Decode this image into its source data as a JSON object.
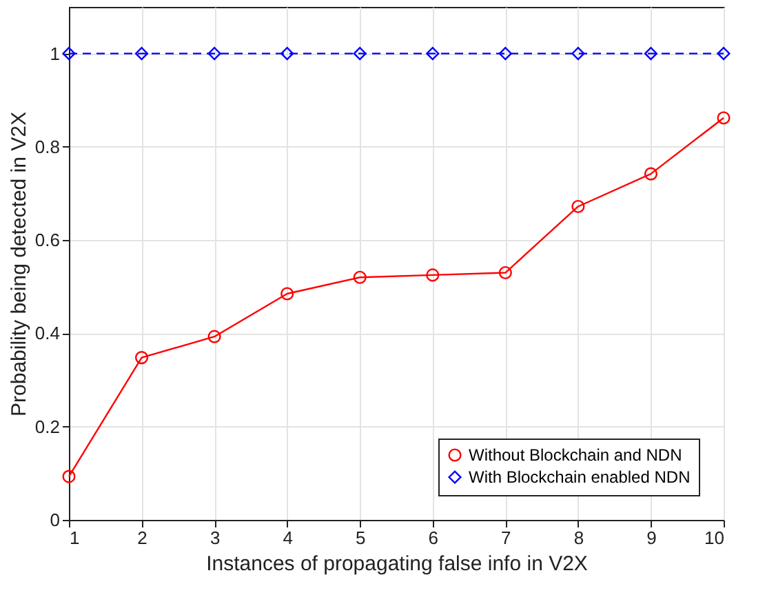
{
  "chart_data": {
    "type": "line",
    "xlabel": "Instances of propagating false info in V2X",
    "ylabel": "Probability being detected in V2X",
    "x": [
      1,
      2,
      3,
      4,
      5,
      6,
      7,
      8,
      9,
      10
    ],
    "series": [
      {
        "name": "Without Blockchain and NDN",
        "color": "#ff0000",
        "marker": "circle",
        "line_style": "solid",
        "values": [
          0.093,
          0.348,
          0.393,
          0.485,
          0.52,
          0.525,
          0.53,
          0.672,
          0.742,
          0.862
        ]
      },
      {
        "name": "With Blockchain enabled NDN",
        "color": "#0000ff",
        "marker": "diamond",
        "line_style": "dashed",
        "values": [
          1,
          1,
          1,
          1,
          1,
          1,
          1,
          1,
          1,
          1
        ]
      }
    ],
    "xlim": [
      1,
      10
    ],
    "xticks": [
      1,
      2,
      3,
      4,
      5,
      6,
      7,
      8,
      9,
      10
    ],
    "ylim": [
      0,
      1.1
    ],
    "yticks": [
      0,
      0.2,
      0.4,
      0.6,
      0.8,
      1
    ],
    "grid": true,
    "legend": "bottom right"
  }
}
